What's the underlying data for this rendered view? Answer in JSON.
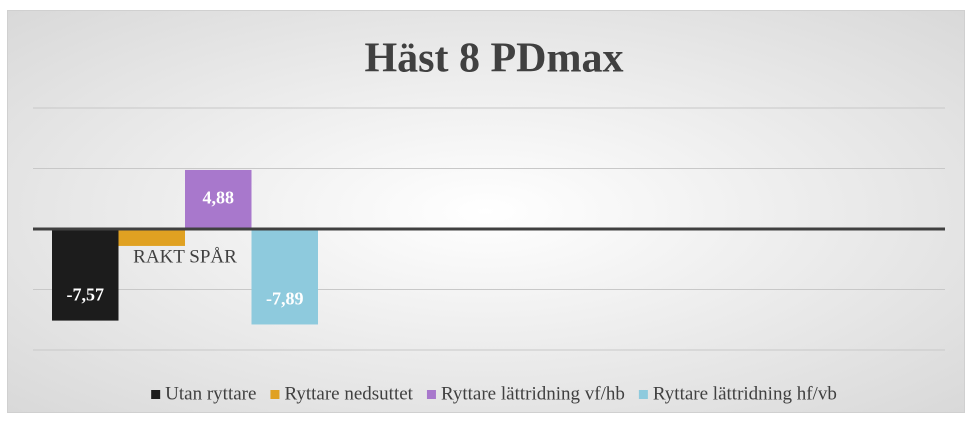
{
  "chart_data": {
    "type": "bar",
    "title": "Häst 8 PDmax",
    "categories": [
      "RAKT SPÅR"
    ],
    "series": [
      {
        "name": "Utan ryttare",
        "color": "#1c1c1c",
        "values": [
          -7.57
        ],
        "value_labels": [
          "-7,57"
        ]
      },
      {
        "name": "Ryttare nedsuttet",
        "color": "#e0a122",
        "values": [
          -1.4
        ],
        "value_labels": [
          null
        ]
      },
      {
        "name": "Ryttare lättridning vf/hb",
        "color": "#a878cc",
        "values": [
          4.88
        ],
        "value_labels": [
          "4,88"
        ]
      },
      {
        "name": "Ryttare lättridning hf/vb",
        "color": "#8ecadd",
        "values": [
          -7.89
        ],
        "value_labels": [
          "-7,89"
        ]
      }
    ],
    "ylim": [
      -10,
      10
    ],
    "yticks": [
      -10,
      -5,
      0,
      5,
      10
    ],
    "grid": true,
    "legend": "bottom"
  }
}
